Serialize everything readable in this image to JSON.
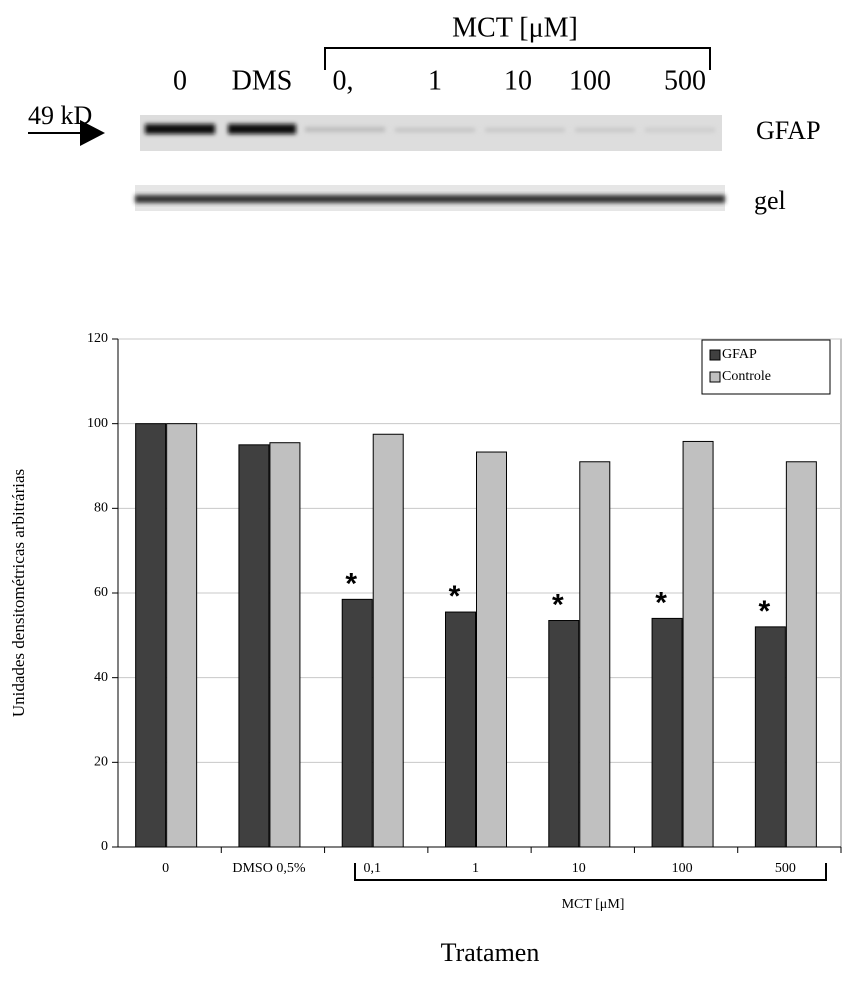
{
  "blot": {
    "header": "MCT [μM]",
    "lanes": [
      "0",
      "DMS",
      "0,",
      "1",
      "10",
      "100",
      "500"
    ],
    "marker": "49 kD",
    "rows": [
      "GFAP",
      "gel"
    ]
  },
  "chart_data": {
    "type": "bar",
    "y_label": "Unidades densitométricas arbitrárias",
    "x_label": "Tratamen",
    "bracket_label": "MCT [μM]",
    "categories": [
      "0",
      "DMSO 0,5%",
      "0,1",
      "1",
      "10",
      "100",
      "500"
    ],
    "series": [
      {
        "name": "GFAP",
        "color": "#404040",
        "values": [
          100,
          95,
          58.5,
          55.5,
          53.5,
          54,
          52
        ]
      },
      {
        "name": "Controle",
        "color": "#c0c0c0",
        "values": [
          100,
          95.5,
          97.5,
          93.3,
          91,
          95.8,
          91
        ]
      }
    ],
    "annotations": [
      {
        "category": "0,1",
        "text": "*"
      },
      {
        "category": "1",
        "text": "*"
      },
      {
        "category": "10",
        "text": "*"
      },
      {
        "category": "100",
        "text": "*"
      },
      {
        "category": "500",
        "text": "*"
      }
    ],
    "ylim": [
      0,
      120
    ],
    "yticks": [
      0,
      20,
      40,
      60,
      80,
      100,
      120
    ],
    "grid": true,
    "legend": "top-right"
  }
}
